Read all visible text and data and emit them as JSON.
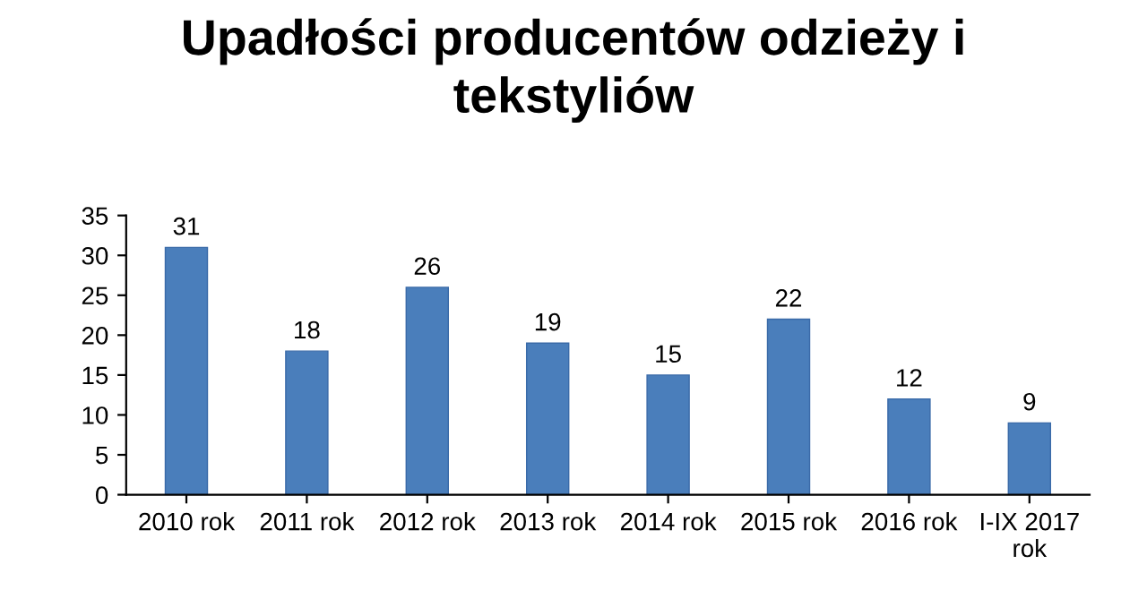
{
  "chart_data": {
    "type": "bar",
    "title": "Upadłości producentów odzieży i\ntekstyliów",
    "categories": [
      "2010 rok",
      "2011 rok",
      "2012 rok",
      "2013 rok",
      "2014 rok",
      "2015 rok",
      "2016 rok",
      "I-IX 2017\nrok"
    ],
    "values": [
      31,
      18,
      26,
      19,
      15,
      22,
      12,
      9
    ],
    "color": "#4a7ebb",
    "ylim": [
      0,
      35
    ],
    "yticks": [
      0,
      5,
      10,
      15,
      20,
      25,
      30,
      35
    ],
    "data_labels": true,
    "grid": false,
    "legend": false
  }
}
